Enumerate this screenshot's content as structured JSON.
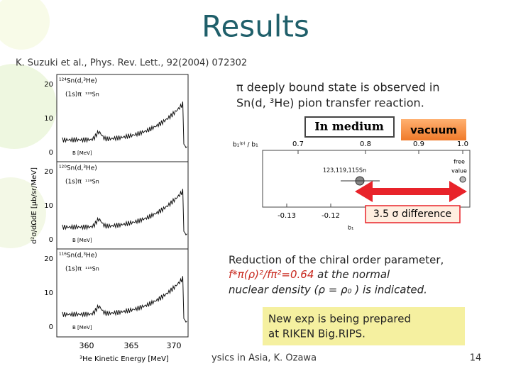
{
  "title": "Results",
  "reference": "K. Suzuki et al., Phys. Rev. Lett., 92(2004) 072302",
  "statement": {
    "line1": "π deeply bound state is observed in",
    "line2": "Sn(d, ³He) pion transfer reaction."
  },
  "in_medium": "In medium",
  "vacuum": "vacuum",
  "scale": {
    "top_label": "b₁⁽ᵖ⁾ / b₁",
    "top_ticks": [
      "0.7",
      "0.8",
      "0.9",
      "1.0"
    ],
    "bottom_label": "b₁",
    "bottom_ticks": [
      "-0.13",
      "-0.12"
    ],
    "point_label": "123,119,115Sn",
    "free_value": [
      "free",
      "value"
    ]
  },
  "difference": "3.5 σ difference",
  "reduction": {
    "line1": "Reduction of the chiral order parameter,",
    "formula": "f*π(ρ)²/fπ²=0.64",
    "line2_rest": " at the normal",
    "line3_pre": "nuclear density (ρ = ρ₀ ) is indicated."
  },
  "note": [
    "New exp is being prepared",
    "at RIKEN Big.RIPS."
  ],
  "footer": "ysics in Asia, K. Ozawa",
  "page": "14",
  "plot": {
    "y_axis_label": "d²σ/dΩdE [μb/sr/MeV]",
    "x_axis_label": "³He Kinetic Energy [MeV]",
    "x_ticks": [
      "360",
      "365",
      "370"
    ],
    "y_ticks": [
      "20",
      "10",
      "0"
    ],
    "b_label": "B [MeV]",
    "panels": [
      {
        "reaction": "¹²⁴Sn(d,³He)",
        "state": "(1s)π",
        "residual": "¹²³Sn"
      },
      {
        "reaction": "¹²⁰Sn(d,³He)",
        "state": "(1s)π",
        "residual": "¹¹⁹Sn"
      },
      {
        "reaction": "¹¹⁶Sn(d,³He)",
        "state": "(1s)π",
        "residual": "¹¹⁵Sn"
      }
    ]
  }
}
